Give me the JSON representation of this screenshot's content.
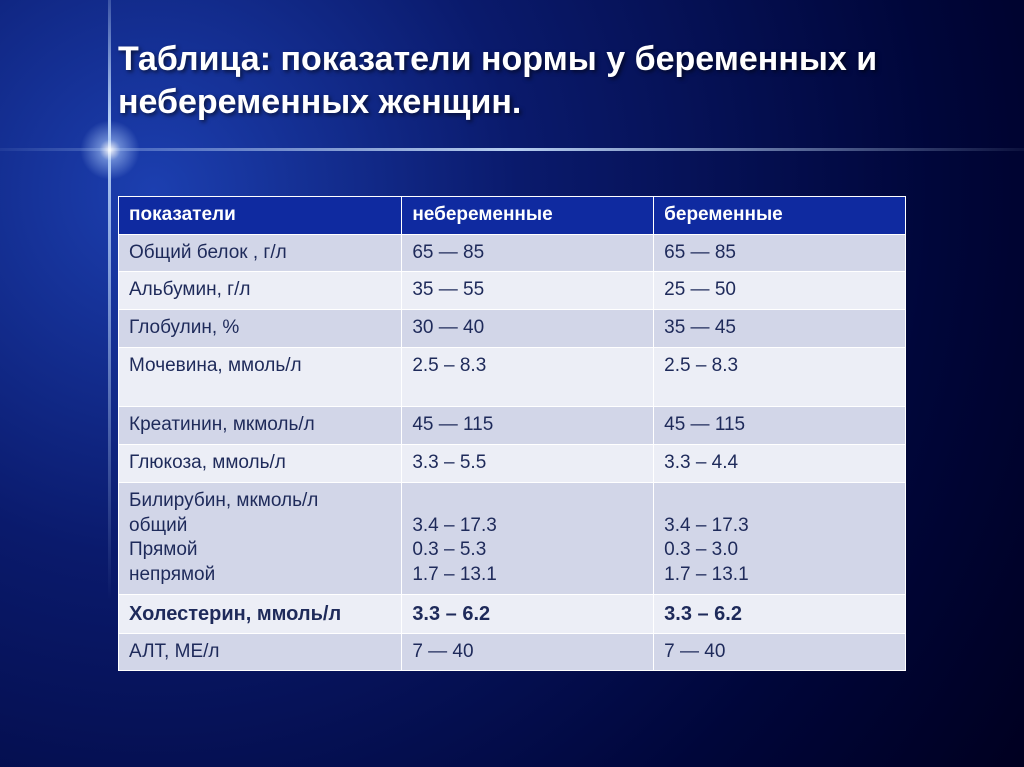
{
  "title": "Таблица: показатели нормы у беременных и небеременных женщин.",
  "table": {
    "header_bg": "#0f2aa0",
    "header_fg": "#ffffff",
    "row_odd_bg": "#d2d6e8",
    "row_even_bg": "#eceef6",
    "text_color": "#1e2a5a",
    "border_color": "#ffffff",
    "title_fontsize": 34,
    "cell_fontsize": 19,
    "columns": [
      "показатели",
      "небеременные",
      "беременные"
    ],
    "rows": [
      {
        "cells": [
          "Общий белок , г/л",
          "65 — 85",
          "65 — 85"
        ],
        "bold": false,
        "tall": false
      },
      {
        "cells": [
          "Альбумин, г/л",
          "35 — 55",
          "25 — 50"
        ],
        "bold": false,
        "tall": false
      },
      {
        "cells": [
          "Глобулин, %",
          "30 — 40",
          "35 — 45"
        ],
        "bold": false,
        "tall": false
      },
      {
        "cells": [
          "Мочевина, ммоль/л",
          "2.5 – 8.3",
          "2.5 – 8.3"
        ],
        "bold": false,
        "tall": true
      },
      {
        "cells": [
          "Креатинин, мкмоль/л",
          "45 — 115",
          "45 — 115"
        ],
        "bold": false,
        "tall": false
      },
      {
        "cells": [
          "Глюкоза, ммоль/л",
          "3.3 – 5.5",
          "3.3 – 4.4"
        ],
        "bold": false,
        "tall": false
      },
      {
        "cells": [
          "Билирубин, мкмоль/л\nобщий\nПрямой\nнепрямой",
          "\n3.4 – 17.3\n0.3 – 5.3\n1.7 – 13.1",
          "\n3.4 – 17.3\n0.3 – 3.0\n1.7 – 13.1"
        ],
        "bold": false,
        "tall": false
      },
      {
        "cells": [
          "Холестерин, ммоль/л",
          "3.3 – 6.2",
          "3.3 – 6.2"
        ],
        "bold": true,
        "tall": false
      },
      {
        "cells": [
          "АЛТ, МЕ/л",
          "7 — 40",
          "7 — 40"
        ],
        "bold": false,
        "tall": false
      }
    ]
  },
  "background": {
    "gradient_inner": "#1c3fb0",
    "gradient_mid": "#0a1a6c",
    "gradient_outer": "#00063a"
  }
}
